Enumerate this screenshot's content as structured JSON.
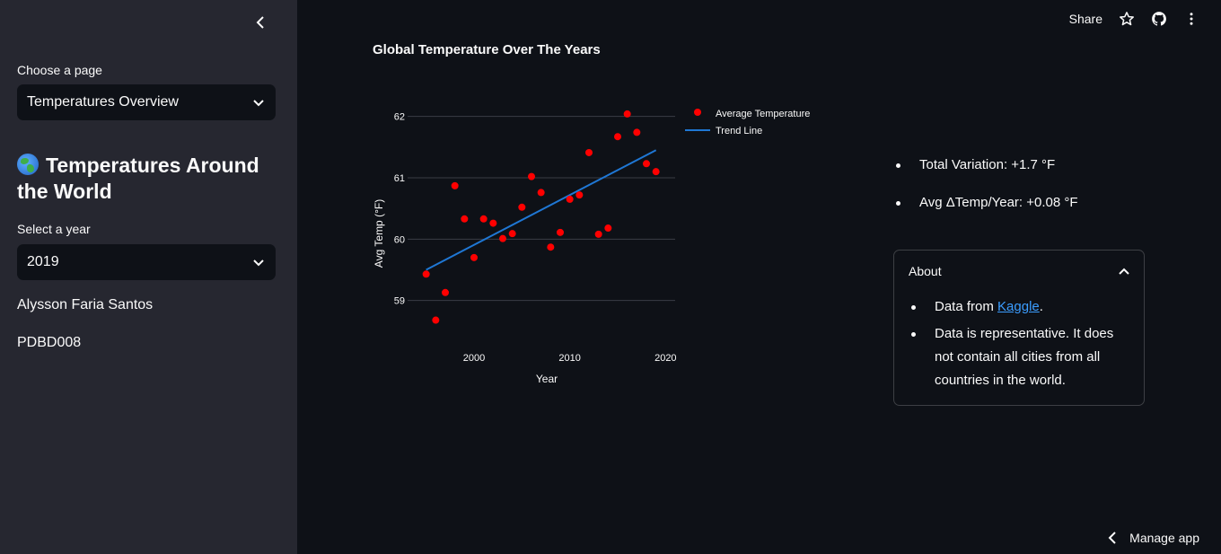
{
  "sidebar": {
    "page_label": "Choose a page",
    "page_select": "Temperatures Overview",
    "title": "Temperatures Around the World",
    "year_label": "Select a year",
    "year_select": "2019",
    "author": "Alysson Faria Santos",
    "code": "PDBD008"
  },
  "header": {
    "share_label": "Share"
  },
  "main": {
    "chart_title": "Global Temperature Over The Years",
    "metrics": [
      "Total Variation: +1.7 °F",
      "Avg ΔTemp/Year: +0.08 °F"
    ],
    "about": {
      "title": "About",
      "item1_prefix": "Data from ",
      "item1_link": "Kaggle",
      "item1_suffix": ".",
      "item2": "Data is representative. It does not contain all cities from all countries in the world."
    }
  },
  "footer": {
    "manage_label": "Manage app"
  },
  "chart_data": {
    "type": "scatter",
    "xlabel": "Year",
    "ylabel": "Avg Temp (°F)",
    "xticks": [
      2000,
      2010,
      2020
    ],
    "yticks": [
      59,
      60,
      61,
      62
    ],
    "xlim": [
      1994,
      2021
    ],
    "ylim": [
      58.6,
      62.2
    ],
    "legend": "top-right",
    "series": [
      {
        "name": "Average Temperature",
        "color": "#ff0000",
        "x": [
          1995,
          1996,
          1997,
          1998,
          1999,
          2000,
          2001,
          2002,
          2003,
          2004,
          2005,
          2006,
          2007,
          2008,
          2009,
          2010,
          2011,
          2012,
          2013,
          2014,
          2015,
          2016,
          2017,
          2018,
          2019
        ],
        "y": [
          59.43,
          58.68,
          59.13,
          60.87,
          60.33,
          59.7,
          60.33,
          60.26,
          60.01,
          60.09,
          60.52,
          61.02,
          60.76,
          59.87,
          60.11,
          60.65,
          60.72,
          61.41,
          60.08,
          60.18,
          61.67,
          62.04,
          61.74,
          61.23,
          61.1
        ]
      },
      {
        "name": "Trend Line",
        "color": "#1f77d4",
        "x": [
          1995,
          2019
        ],
        "y": [
          59.5,
          61.45
        ]
      }
    ]
  }
}
